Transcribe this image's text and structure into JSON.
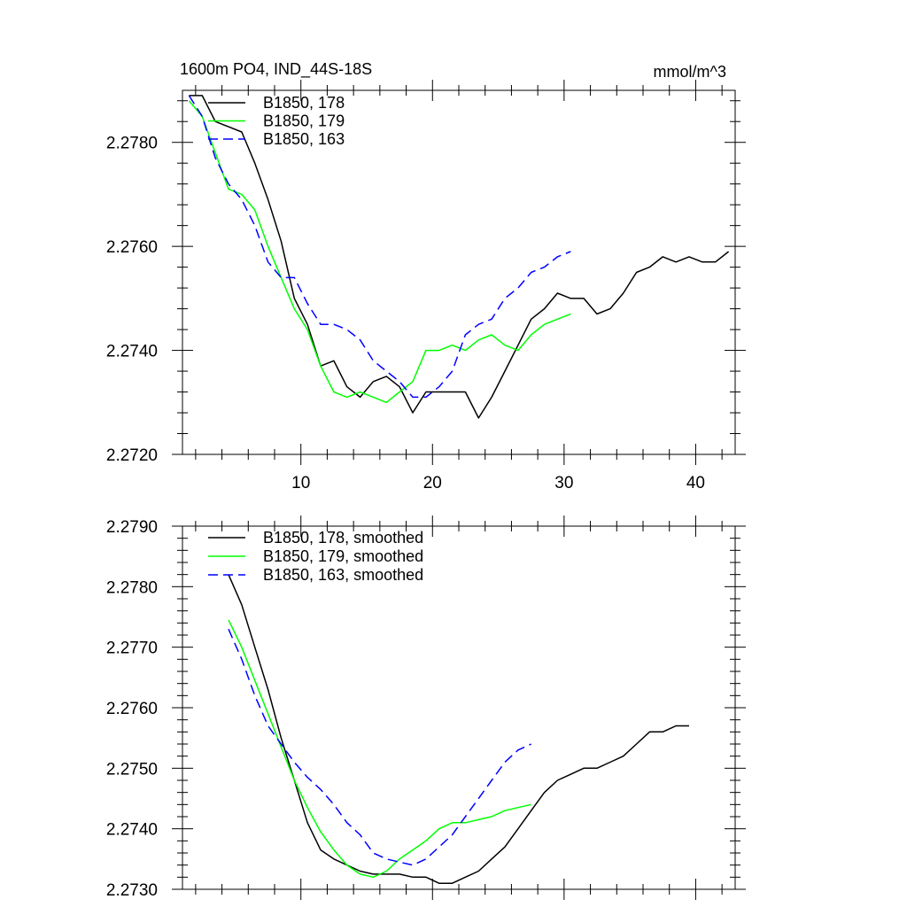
{
  "chart_data": [
    {
      "type": "line",
      "title_left": "1600m PO4, IND_44S-18S",
      "title_right": "mmol/m^3",
      "xlabel": "",
      "ylabel": "",
      "xlim": [
        1,
        43
      ],
      "ylim": [
        2.272,
        2.279
      ],
      "xticks": [
        10,
        20,
        30,
        40
      ],
      "xtick_labels": [
        "10",
        "20",
        "30",
        "40"
      ],
      "yticks": [
        2.272,
        2.274,
        2.276,
        2.278
      ],
      "ytick_labels": [
        "2.2720",
        "2.2740",
        "2.2760",
        "2.2780"
      ],
      "legend_position": "top-left",
      "series": [
        {
          "name": "B1850, 178",
          "color": "#000000",
          "dash": "solid",
          "x": [
            1.5,
            2.5,
            3.5,
            4.5,
            5.5,
            6.5,
            7.5,
            8.5,
            9.5,
            10.5,
            11.5,
            12.5,
            13.5,
            14.5,
            15.5,
            16.5,
            17.5,
            18.5,
            19.5,
            20.5,
            21.5,
            22.5,
            23.5,
            24.5,
            25.5,
            26.5,
            27.5,
            28.5,
            29.5,
            30.5,
            31.5,
            32.5,
            33.5,
            34.5,
            35.5,
            36.5,
            37.5,
            38.5,
            39.5,
            40.5,
            41.5,
            42.5
          ],
          "y": [
            2.2789,
            2.2789,
            2.2784,
            2.2783,
            2.2782,
            2.2776,
            2.2769,
            2.2761,
            2.275,
            2.2745,
            2.2737,
            2.2738,
            2.2733,
            2.2731,
            2.2734,
            2.2735,
            2.2733,
            2.2728,
            2.2732,
            2.2732,
            2.2732,
            2.2732,
            2.2727,
            2.2731,
            2.2736,
            2.2741,
            2.2746,
            2.2748,
            2.2751,
            2.275,
            2.275,
            2.2747,
            2.2748,
            2.2751,
            2.2755,
            2.2756,
            2.2758,
            2.2757,
            2.2758,
            2.2757,
            2.2757,
            2.2759
          ]
        },
        {
          "name": "B1850, 179",
          "color": "#00ff00",
          "dash": "solid",
          "x": [
            1.5,
            2.5,
            3.5,
            4.5,
            5.5,
            6.5,
            7.5,
            8.5,
            9.5,
            10.5,
            11.5,
            12.5,
            13.5,
            14.5,
            15.5,
            16.5,
            17.5,
            18.5,
            19.5,
            20.5,
            21.5,
            22.5,
            23.5,
            24.5,
            25.5,
            26.5,
            27.5,
            28.5,
            29.5,
            30.5
          ],
          "y": [
            2.2788,
            2.2785,
            2.2778,
            2.2771,
            2.277,
            2.2767,
            2.276,
            2.2754,
            2.2748,
            2.2744,
            2.2737,
            2.2732,
            2.2731,
            2.2732,
            2.2731,
            2.273,
            2.2732,
            2.2734,
            2.274,
            2.274,
            2.2741,
            2.274,
            2.2742,
            2.2743,
            2.2741,
            2.274,
            2.2743,
            2.2745,
            2.2746,
            2.2747
          ]
        },
        {
          "name": "B1850, 163",
          "color": "#0000ff",
          "dash": "dashed",
          "x": [
            1.5,
            2.5,
            3.5,
            4.5,
            5.5,
            6.5,
            7.5,
            8.5,
            9.5,
            10.5,
            11.5,
            12.5,
            13.5,
            14.5,
            15.5,
            16.5,
            17.5,
            18.5,
            19.5,
            20.5,
            21.5,
            22.5,
            23.5,
            24.5,
            25.5,
            26.5,
            27.5,
            28.5,
            29.5,
            30.5
          ],
          "y": [
            2.2789,
            2.2785,
            2.2777,
            2.2772,
            2.2769,
            2.2764,
            2.2757,
            2.2754,
            2.2754,
            2.2749,
            2.2745,
            2.2745,
            2.2744,
            2.2742,
            2.2738,
            2.2736,
            2.2734,
            2.2731,
            2.2731,
            2.2733,
            2.2736,
            2.2743,
            2.2745,
            2.2746,
            2.275,
            2.2752,
            2.2755,
            2.2756,
            2.2758,
            2.2759
          ]
        }
      ]
    },
    {
      "type": "line",
      "xlabel": "",
      "ylabel": "",
      "xlim": [
        1,
        43
      ],
      "ylim": [
        2.273,
        2.279
      ],
      "xticks": [
        10,
        20,
        30,
        40
      ],
      "xtick_labels": [
        "",
        "",
        "",
        ""
      ],
      "yticks": [
        2.273,
        2.274,
        2.275,
        2.276,
        2.277,
        2.278,
        2.279
      ],
      "ytick_labels": [
        "2.2730",
        "2.2740",
        "2.2750",
        "2.2760",
        "2.2770",
        "2.2780",
        "2.2790"
      ],
      "legend_position": "top-left",
      "series": [
        {
          "name": "B1850, 178, smoothed",
          "color": "#000000",
          "dash": "solid",
          "x": [
            4.5,
            5.5,
            6.5,
            7.5,
            8.5,
            9.5,
            10.5,
            11.5,
            12.5,
            13.5,
            14.5,
            15.5,
            16.5,
            17.5,
            18.5,
            19.5,
            20.5,
            21.5,
            22.5,
            23.5,
            24.5,
            25.5,
            26.5,
            27.5,
            28.5,
            29.5,
            30.5,
            31.5,
            32.5,
            33.5,
            34.5,
            35.5,
            36.5,
            37.5,
            38.5,
            39.5
          ],
          "y": [
            2.2782,
            2.2777,
            2.277,
            2.2763,
            2.2755,
            2.2748,
            2.2741,
            2.27365,
            2.2735,
            2.2734,
            2.2733,
            2.27325,
            2.27325,
            2.27325,
            2.2732,
            2.2732,
            2.2731,
            2.2731,
            2.2732,
            2.2733,
            2.2735,
            2.2737,
            2.274,
            2.2743,
            2.2746,
            2.2748,
            2.2749,
            2.275,
            2.275,
            2.2751,
            2.2752,
            2.2754,
            2.2756,
            2.2756,
            2.2757,
            2.2757
          ]
        },
        {
          "name": "B1850, 179, smoothed",
          "color": "#00ff00",
          "dash": "solid",
          "x": [
            4.5,
            5.5,
            6.5,
            7.5,
            8.5,
            9.5,
            10.5,
            11.5,
            12.5,
            13.5,
            14.5,
            15.5,
            16.5,
            17.5,
            18.5,
            19.5,
            20.5,
            21.5,
            22.5,
            23.5,
            24.5,
            25.5,
            26.5,
            27.5
          ],
          "y": [
            2.27745,
            2.277,
            2.27645,
            2.2759,
            2.27535,
            2.2748,
            2.27435,
            2.27395,
            2.27365,
            2.2734,
            2.27325,
            2.2732,
            2.2733,
            2.2735,
            2.27365,
            2.2738,
            2.274,
            2.2741,
            2.2741,
            2.27415,
            2.2742,
            2.2743,
            2.27435,
            2.2744
          ]
        },
        {
          "name": "B1850, 163, smoothed",
          "color": "#0000ff",
          "dash": "dashed",
          "x": [
            4.5,
            5.5,
            6.5,
            7.5,
            8.5,
            9.5,
            10.5,
            11.5,
            12.5,
            13.5,
            14.5,
            15.5,
            16.5,
            17.5,
            18.5,
            19.5,
            20.5,
            21.5,
            22.5,
            23.5,
            24.5,
            25.5,
            26.5,
            27.5
          ],
          "y": [
            2.2773,
            2.2768,
            2.2762,
            2.2757,
            2.2754,
            2.2751,
            2.27485,
            2.27465,
            2.2744,
            2.2741,
            2.2739,
            2.2736,
            2.2735,
            2.27345,
            2.2734,
            2.2735,
            2.2737,
            2.2739,
            2.2742,
            2.2745,
            2.2748,
            2.2751,
            2.2753,
            2.2754
          ]
        }
      ]
    }
  ]
}
